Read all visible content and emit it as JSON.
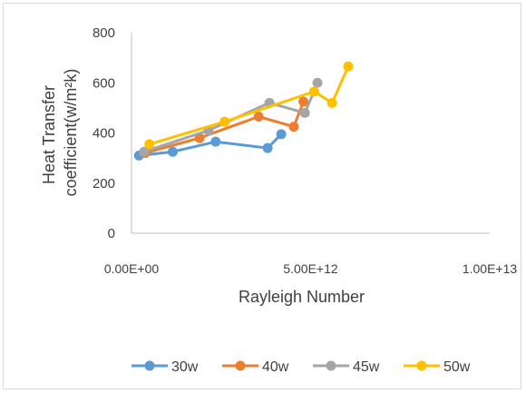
{
  "chart_data": {
    "type": "scatter",
    "title": "",
    "xlabel": "Rayleigh Number",
    "ylabel_lines": [
      "Heat Transfer",
      "coefficient(w/m²k)"
    ],
    "xlim": [
      0,
      10000000000000
    ],
    "ylim": [
      0,
      800
    ],
    "x_ticks": [
      0,
      5000000000000,
      10000000000000
    ],
    "x_tick_labels": [
      "0.00E+00",
      "5.00E+12",
      "1.00E+13"
    ],
    "y_ticks": [
      0,
      200,
      400,
      600,
      800
    ],
    "y_tick_labels": [
      "0",
      "200",
      "400",
      "600",
      "800"
    ],
    "grid": false,
    "legend_position": "bottom",
    "series": [
      {
        "name": "30w",
        "color": "#5b9bd5",
        "x": [
          210000000000,
          1150000000000,
          2350000000000,
          3800000000000,
          4180000000000
        ],
        "y": [
          310,
          325,
          365,
          340,
          395
        ]
      },
      {
        "name": "40w",
        "color": "#ed7d31",
        "x": [
          380000000000,
          1900000000000,
          3550000000000,
          4530000000000,
          4800000000000
        ],
        "y": [
          320,
          380,
          465,
          425,
          525
        ]
      },
      {
        "name": "45w",
        "color": "#a5a5a5",
        "x": [
          350000000000,
          2150000000000,
          3850000000000,
          4840000000000,
          5190000000000
        ],
        "y": [
          325,
          410,
          520,
          480,
          600
        ]
      },
      {
        "name": "50w",
        "color": "#ffc000",
        "x": [
          500000000000,
          2600000000000,
          5100000000000,
          5600000000000,
          6050000000000
        ],
        "y": [
          355,
          445,
          565,
          520,
          665
        ]
      }
    ]
  }
}
